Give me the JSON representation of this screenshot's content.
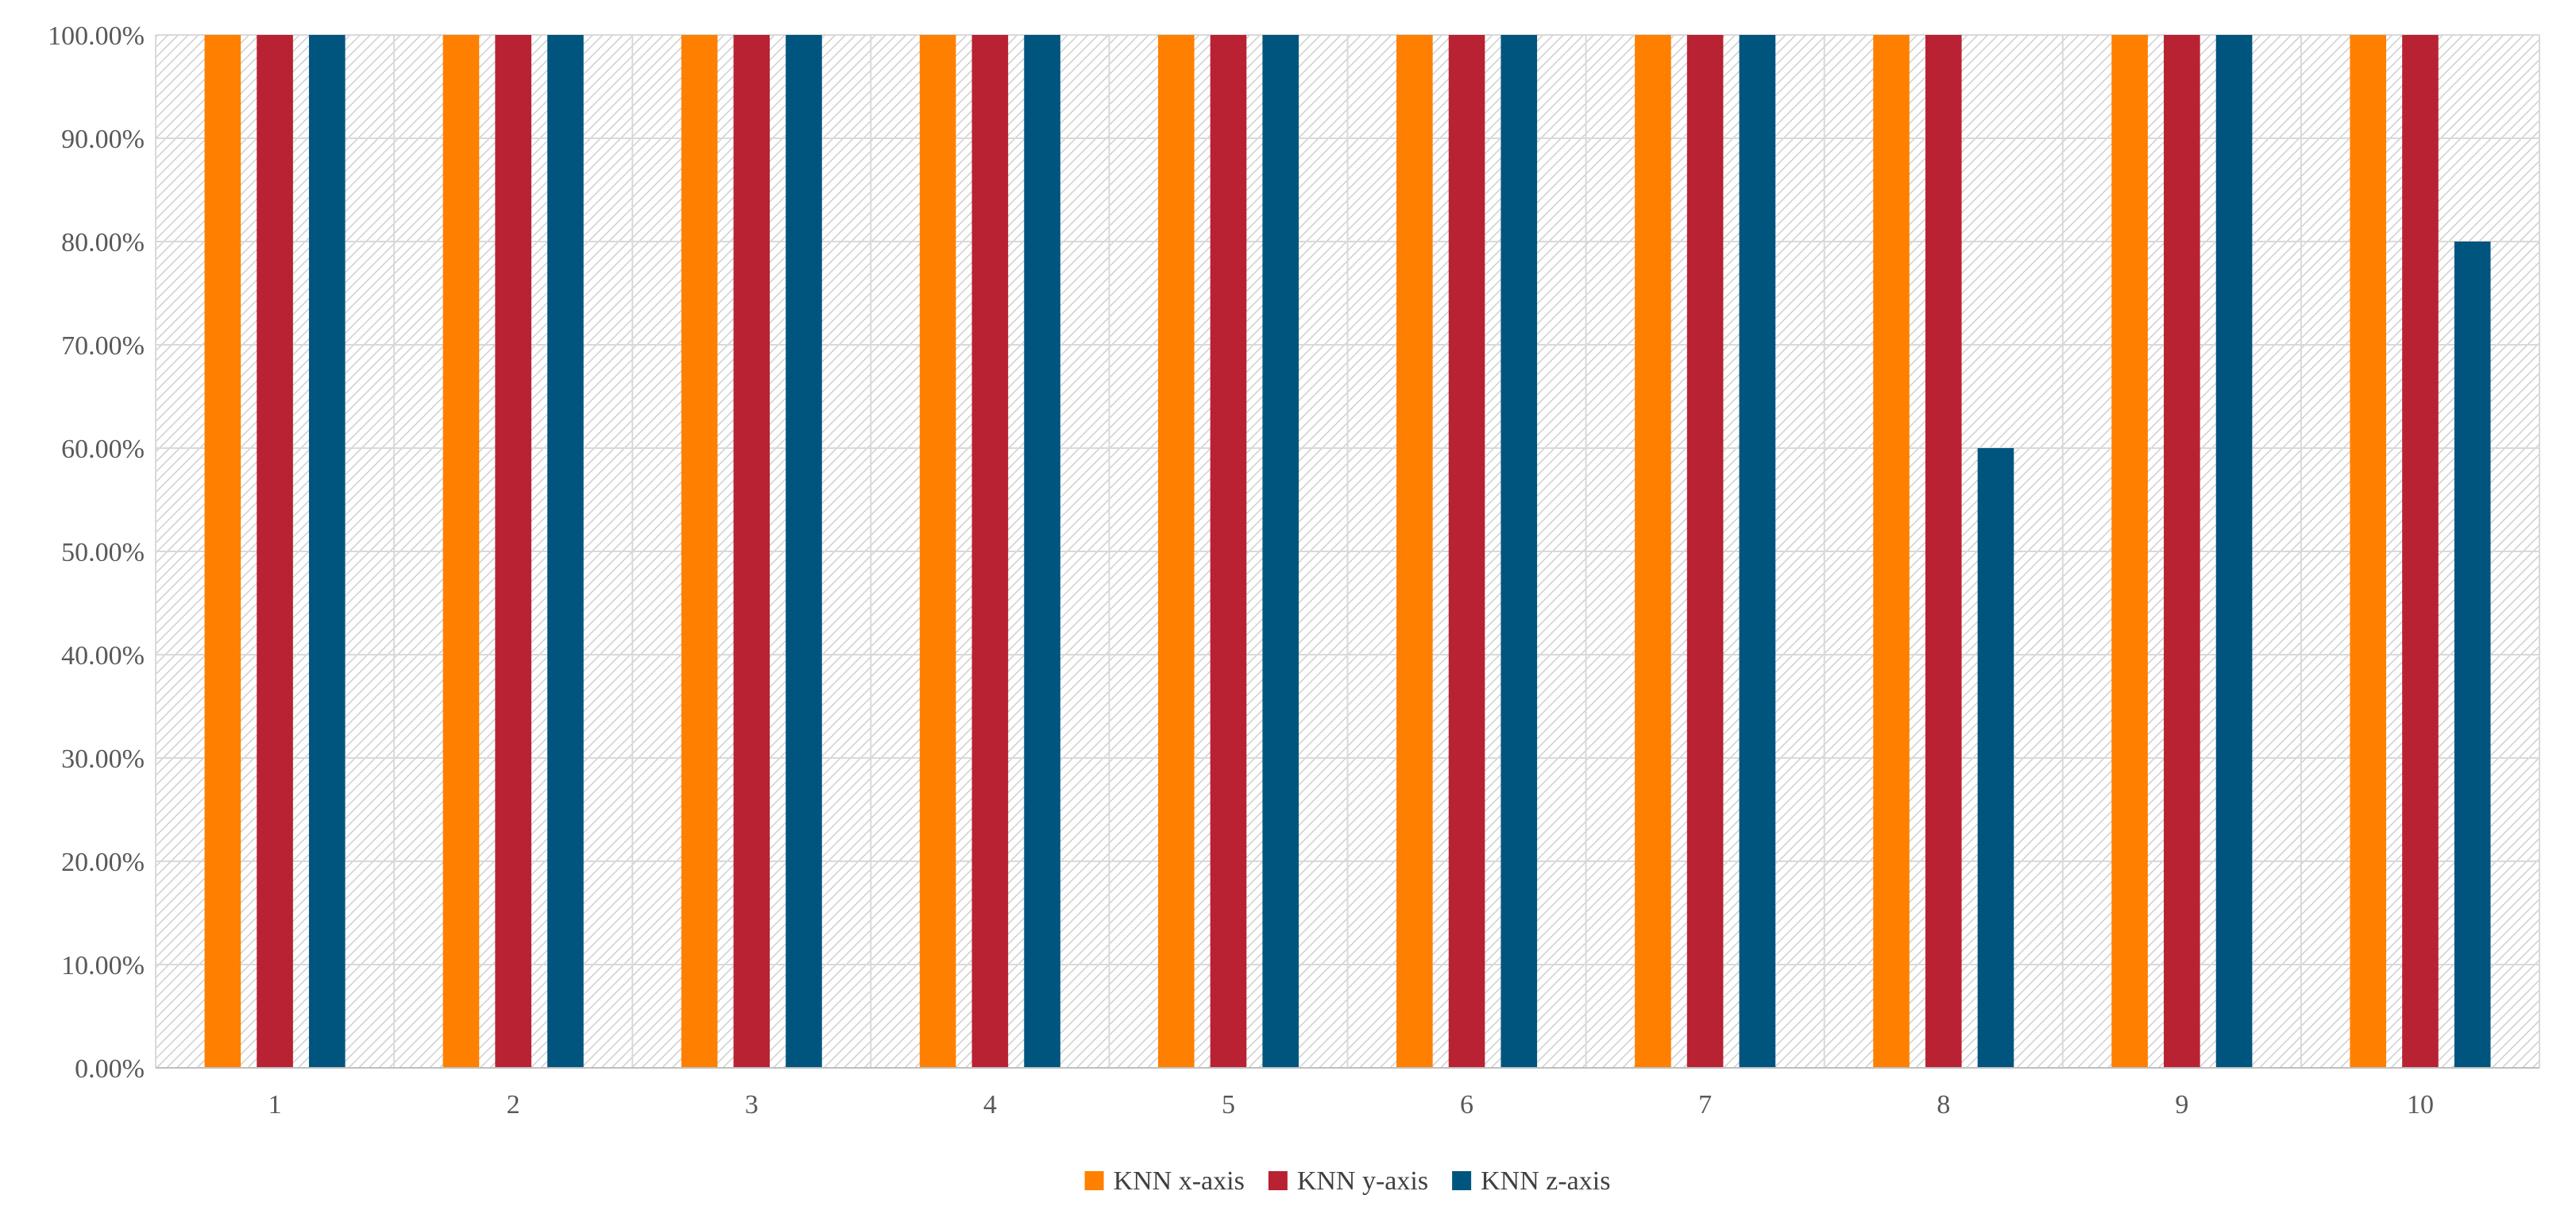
{
  "chart_data": {
    "type": "bar",
    "title": "",
    "xlabel": "",
    "ylabel": "",
    "categories": [
      "1",
      "2",
      "3",
      "4",
      "5",
      "6",
      "7",
      "8",
      "9",
      "10"
    ],
    "series": [
      {
        "name": "KNN x-axis",
        "color": "#FF8000",
        "values": [
          100,
          100,
          100,
          100,
          100,
          100,
          100,
          100,
          100,
          100
        ]
      },
      {
        "name": "KNN y-axis",
        "color": "#B82233",
        "values": [
          100,
          100,
          100,
          100,
          100,
          100,
          100,
          100,
          100,
          100
        ]
      },
      {
        "name": "KNN z-axis",
        "color": "#00557F",
        "values": [
          100,
          100,
          100,
          100,
          100,
          100,
          100,
          60,
          100,
          80
        ]
      }
    ],
    "ylim": [
      0,
      100
    ],
    "y_ticks": [
      "0.00%",
      "10.00%",
      "20.00%",
      "30.00%",
      "40.00%",
      "50.00%",
      "60.00%",
      "70.00%",
      "80.00%",
      "90.00%",
      "100.00%"
    ],
    "grid": true,
    "legend_position": "bottom-center",
    "plot_background": "hatched-gray"
  }
}
